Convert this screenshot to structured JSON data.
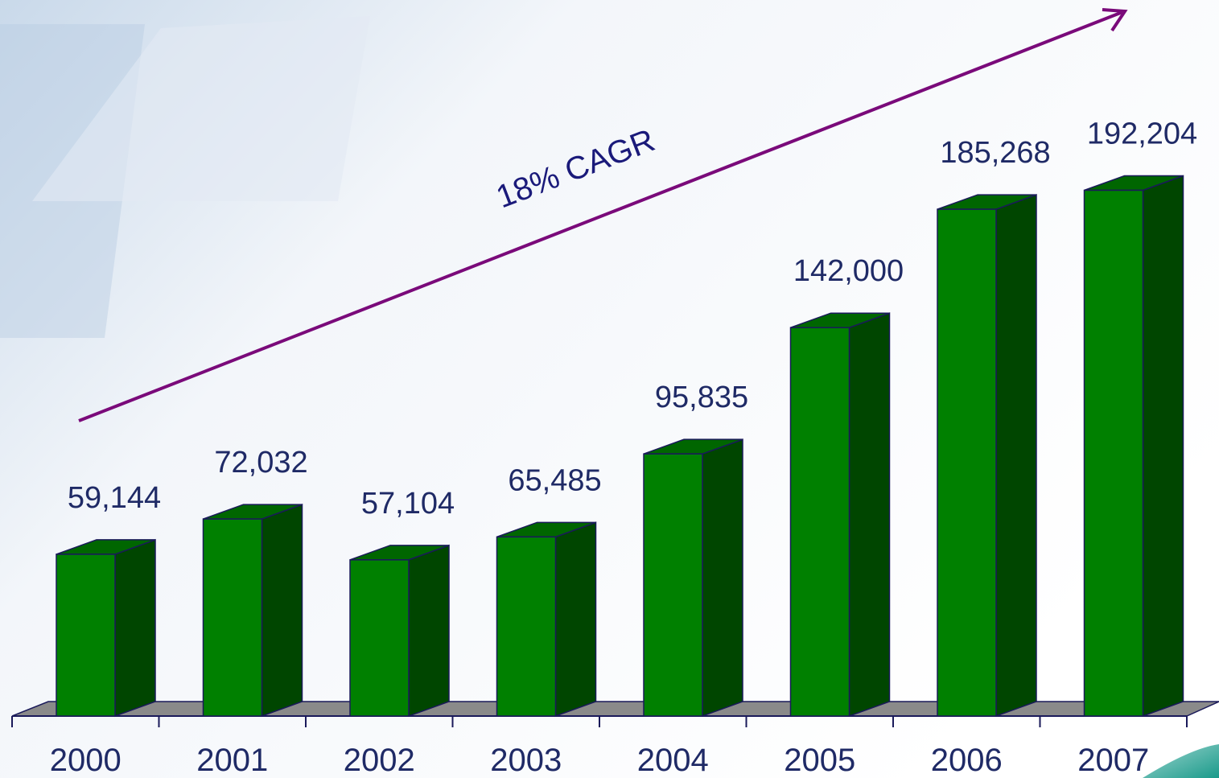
{
  "chart_data": {
    "type": "bar3d",
    "categories": [
      "2000",
      "2001",
      "2002",
      "2003",
      "2004",
      "2005",
      "2006",
      "2007"
    ],
    "values": [
      59144,
      72032,
      57104,
      65485,
      95835,
      142000,
      185268,
      192204
    ],
    "value_labels": [
      "59,144",
      "72,032",
      "57,104",
      "65,485",
      "95,835",
      "142,000",
      "185,268",
      "192,204"
    ],
    "color": "#008000",
    "annotation": "18% CAGR",
    "annotation_color": "#7a0a7a"
  }
}
